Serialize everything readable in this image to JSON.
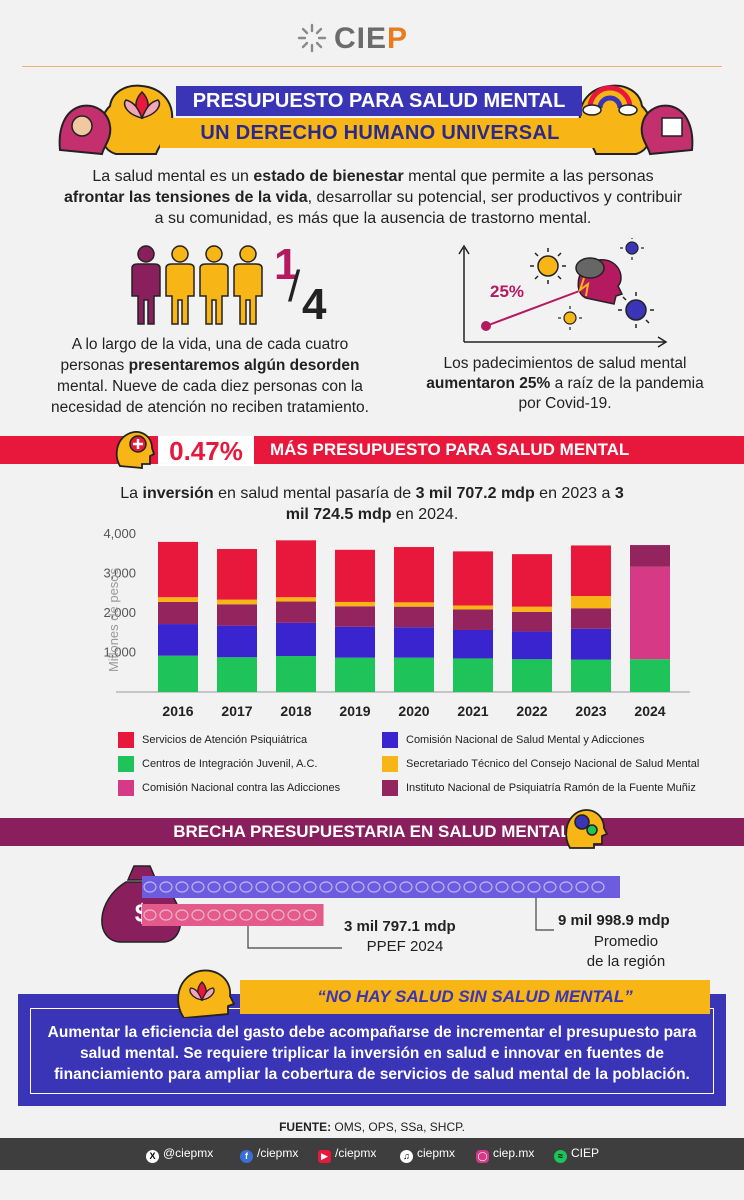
{
  "brand": {
    "logo_text_a": "CIE",
    "logo_text_b": "P"
  },
  "header": {
    "title_line1": "PRESUPUESTO PARA SALUD MENTAL",
    "title_line2": "UN DERECHO HUMANO UNIVERSAL"
  },
  "intro": {
    "t1": "La salud mental es un ",
    "b1": "estado de bienestar",
    "t2": " mental que permite a las personas ",
    "b2": "afrontar las tensiones de la vida",
    "t3": ", desarrollar su potencial, ser productivos y contribuir a su comunidad, es más que la ausencia de trastorno mental."
  },
  "quarter": {
    "num": "1",
    "den": "4",
    "t1": "A lo largo de la vida, una de cada cuatro personas ",
    "b1": "presentaremos algún desorden",
    "t2": " mental. Nueve de cada diez personas con la necesidad de atención no reciben tratamiento."
  },
  "pandemic": {
    "pct": "25%",
    "t1": "Los padecimientos de salud mental ",
    "b1": "aumentaron 25%",
    "t2": " a raíz de la pandemia por Covid-19."
  },
  "budget_band": {
    "pct": "0.47%",
    "label": "MÁS PRESUPUESTO PARA SALUD MENTAL"
  },
  "investment": {
    "t1": "La ",
    "b1": "inversión",
    "t2": " en salud mental pasaría de ",
    "b2": "3 mil 707.2 mdp",
    "t3": " en 2023 a ",
    "b3": "3 mil 724.5 mdp",
    "t4": " en 2024."
  },
  "chart_data": {
    "type": "bar",
    "stacked": true,
    "ylabel": "Millones de pesos",
    "ylim": [
      0,
      4000
    ],
    "yticks": [
      1000,
      2000,
      3000,
      4000
    ],
    "ytick_labels": [
      "1,000",
      "2,000",
      "3,000",
      "4,000"
    ],
    "categories": [
      "2016",
      "2017",
      "2018",
      "2019",
      "2020",
      "2021",
      "2022",
      "2023",
      "2024"
    ],
    "series": [
      {
        "name": "Centros de Integración Juvenil, A.C.",
        "color": "#1ec45a",
        "values": [
          920,
          880,
          910,
          870,
          870,
          850,
          830,
          820,
          830
        ]
      },
      {
        "name": "Comisión Nacional contra las Adicciones",
        "color": "#d63a86",
        "values": [
          0,
          0,
          0,
          0,
          0,
          0,
          0,
          0,
          2340
        ]
      },
      {
        "name": "Comisión Nacional de Salud Mental y Adicciones",
        "color": "#3a24d0",
        "values": [
          800,
          800,
          840,
          780,
          770,
          720,
          700,
          780,
          0
        ]
      },
      {
        "name": "Instituto Nacional de Psiquiatría Ramón de la Fuente Muñiz",
        "color": "#94245e",
        "values": [
          560,
          540,
          540,
          520,
          520,
          520,
          500,
          520,
          550
        ]
      },
      {
        "name": "Secretariado Técnico del Consejo Nacional de Salud Mental",
        "color": "#f7b516",
        "values": [
          120,
          120,
          110,
          110,
          110,
          100,
          130,
          310,
          0
        ]
      },
      {
        "name": "Servicios de Atención Psiquiátrica",
        "color": "#e8183c",
        "values": [
          1400,
          1280,
          1440,
          1320,
          1400,
          1370,
          1330,
          1280,
          0
        ]
      }
    ],
    "legend_order": [
      5,
      2,
      0,
      4,
      1,
      3
    ],
    "legend_position": "bottom",
    "grid": false
  },
  "gap_band": {
    "label": "BRECHA PRESUPUESTARIA EN SALUD MENTAL"
  },
  "gap": {
    "ppef_value": "3 mil 797.1 mdp",
    "ppef_label": "PPEF 2024",
    "region_value": "9 mil 998.9 mdp",
    "region_label1": "Promedio",
    "region_label2": "de la región",
    "ppef_amount": 3797.1,
    "region_amount": 9998.9
  },
  "quote": {
    "title": "“NO HAY SALUD SIN SALUD MENTAL”",
    "body": "Aumentar la eficiencia del gasto debe acompañarse de incrementar el presupuesto para salud mental. Se requiere triplicar la inversión en salud e innovar en fuentes de financiamiento para ampliar la cobertura de servicios de salud mental de la población."
  },
  "source": {
    "label": "FUENTE:",
    "text": " OMS, OPS, SSa, SHCP."
  },
  "social": [
    {
      "icon": "x-icon",
      "label": "@ciepmx"
    },
    {
      "icon": "facebook-icon",
      "label": "/ciepmx"
    },
    {
      "icon": "youtube-icon",
      "label": "/ciepmx"
    },
    {
      "icon": "tiktok-icon",
      "label": "ciepmx"
    },
    {
      "icon": "instagram-icon",
      "label": "ciep.mx"
    },
    {
      "icon": "spotify-icon",
      "label": "CIEP"
    }
  ],
  "colors": {
    "blue": "#3a34b6",
    "yellow": "#f7b516",
    "red": "#e8183c",
    "plum": "#8a1f5e",
    "magenta": "#b41a60"
  }
}
